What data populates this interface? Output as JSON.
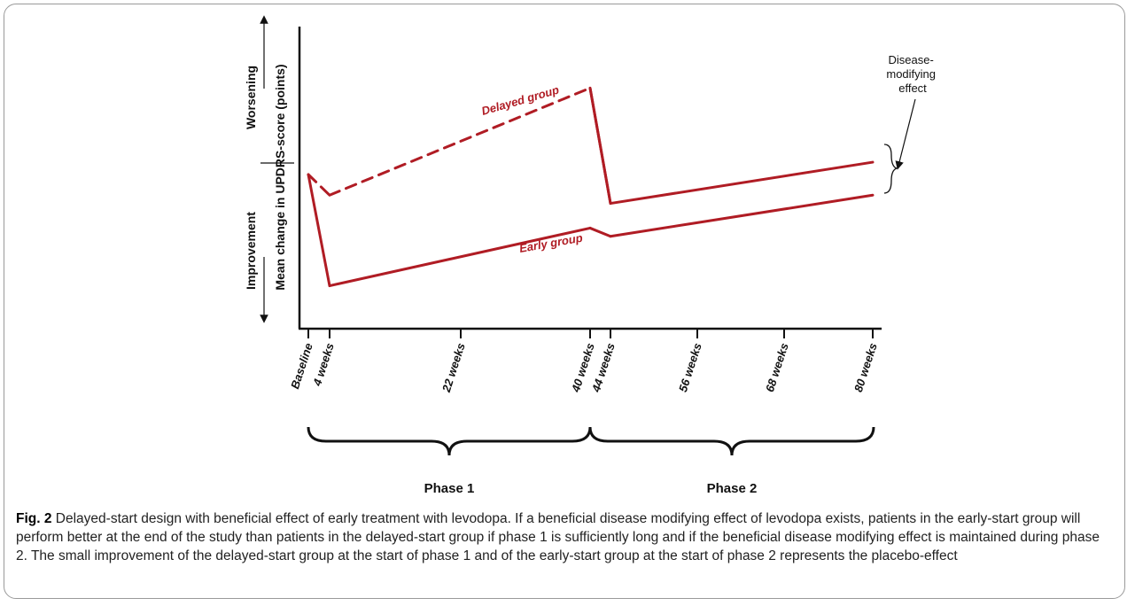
{
  "figure": {
    "y_axis": {
      "label": "Mean change in UPDRS-score (points)",
      "up_label": "Worsening",
      "down_label": "Improvement"
    },
    "groups": {
      "delayed_label": "Delayed group",
      "early_label": "Early group"
    },
    "annotation": "Disease-\nmodifying\neffect",
    "phases": [
      "Phase 1",
      "Phase 2"
    ],
    "line_color": "#b01c24"
  },
  "chart_data": {
    "type": "line",
    "x_tick_labels": [
      "Baseline",
      "4 weeks",
      "22 weeks",
      "40 weeks",
      "44 weeks",
      "56 weeks",
      "68 weeks",
      "80 weeks"
    ],
    "series": [
      {
        "name": "Delayed group",
        "style": "dashed then solid",
        "x": [
          0,
          4,
          40,
          40,
          44,
          80
        ],
        "y": [
          0,
          -2.5,
          10.5,
          10.5,
          -3.5,
          1.5
        ]
      },
      {
        "name": "Early group",
        "style": "solid",
        "x": [
          0,
          4,
          40,
          44,
          80
        ],
        "y": [
          0,
          -13.5,
          -6.5,
          -7.5,
          -2.5
        ]
      }
    ]
  },
  "caption": {
    "label": "Fig. 2",
    "text": "Delayed-start design with beneficial effect of early treatment with levodopa. If a beneficial disease modifying effect of levodopa exists, patients in the early-start group will perform better at the end of the study than patients in the delayed-start group if phase 1 is sufficiently long and if the beneficial disease modifying effect is maintained during phase 2. The small improvement of the delayed-start group at the start of phase 1 and of the early-start group at the start of phase 2 represents the placebo-effect"
  }
}
